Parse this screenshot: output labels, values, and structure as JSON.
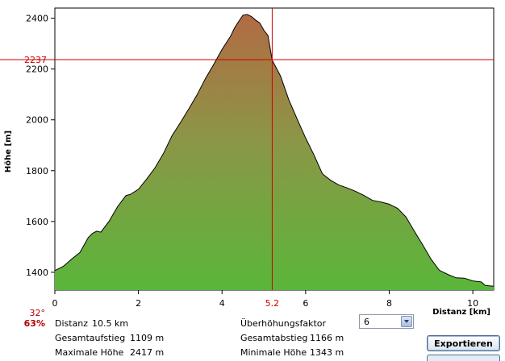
{
  "chart_data": {
    "type": "area",
    "ylabel": "Höhe [m]",
    "xlabel": "Distanz [km]",
    "xlim": [
      0,
      10.5
    ],
    "ylim": [
      1330,
      2440
    ],
    "x_ticks": [
      "0",
      "2",
      "4",
      "6",
      "8",
      "10"
    ],
    "y_ticks": [
      "1400",
      "1600",
      "1800",
      "2000",
      "2200",
      "2400"
    ],
    "cursor": {
      "distance_label": "5.2",
      "height_label": "2237",
      "distance": 5.2,
      "height": 2237
    },
    "series": [
      {
        "x": [
          0,
          0.2,
          0.4,
          0.6,
          0.8,
          0.9,
          1.0,
          1.1,
          1.3,
          1.5,
          1.7,
          1.8,
          2.0,
          2.2,
          2.4,
          2.6,
          2.8,
          3.0,
          3.2,
          3.4,
          3.6,
          3.8,
          4.0,
          4.2,
          4.3,
          4.4,
          4.5,
          4.6,
          4.7,
          4.8,
          4.9,
          5.0,
          5.1,
          5.2,
          5.4,
          5.6,
          5.8,
          6.0,
          6.2,
          6.4,
          6.6,
          6.8,
          7.0,
          7.2,
          7.4,
          7.6,
          7.8,
          8.0,
          8.2,
          8.4,
          8.6,
          8.8,
          9.0,
          9.2,
          9.4,
          9.6,
          9.8,
          10.0,
          10.2,
          10.3,
          10.5
        ],
        "y": [
          1405,
          1425,
          1450,
          1480,
          1535,
          1555,
          1560,
          1560,
          1600,
          1660,
          1700,
          1708,
          1725,
          1770,
          1810,
          1870,
          1935,
          1990,
          2040,
          2100,
          2160,
          2220,
          2275,
          2330,
          2360,
          2390,
          2410,
          2417,
          2405,
          2395,
          2380,
          2355,
          2330,
          2237,
          2170,
          2080,
          2000,
          1930,
          1860,
          1790,
          1760,
          1745,
          1730,
          1720,
          1700,
          1685,
          1675,
          1670,
          1650,
          1620,
          1560,
          1510,
          1450,
          1410,
          1390,
          1380,
          1375,
          1368,
          1360,
          1350,
          1343
        ]
      }
    ]
  },
  "stats": {
    "angle": "32°",
    "percent": "63%",
    "distance_label": "Distanz",
    "distance_value": "10.5 km",
    "ascent_label": "Gesamtaufstieg",
    "ascent_value": "1109 m",
    "max_label": "Maximale Höhe",
    "max_value": "2417 m",
    "descent_label": "Gesamtabstieg",
    "descent_value": "1166 m",
    "min_label": "Minimale Höhe",
    "min_value": "1343 m",
    "exaggeration_label": "Überhöhungsfaktor"
  },
  "controls": {
    "exaggeration_value": "6",
    "export_label": "Exportieren"
  },
  "colors": {
    "fill_top": "#b26a43",
    "fill_bottom": "#5ab63a",
    "cursor": "#d00000"
  }
}
